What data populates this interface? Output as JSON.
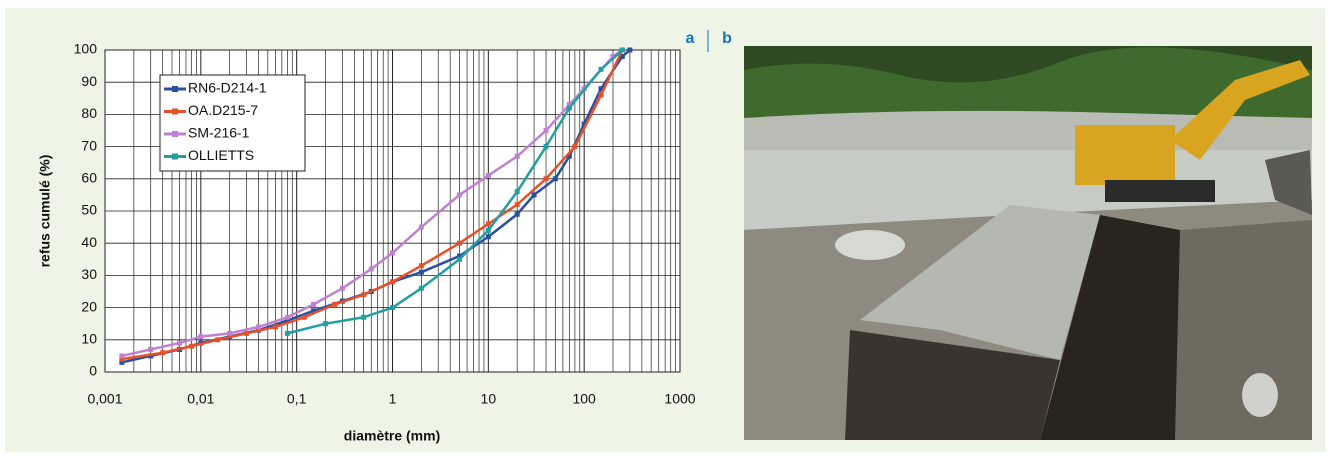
{
  "chart_data": {
    "type": "line",
    "xlabel": "diamètre (mm)",
    "ylabel": "refus cumulé (%)",
    "xscale": "log",
    "xlim": [
      0.001,
      1000
    ],
    "xticks": [
      {
        "value": 0.001,
        "label": "0,001"
      },
      {
        "value": 0.01,
        "label": "0,01"
      },
      {
        "value": 0.1,
        "label": "0,1"
      },
      1,
      10,
      100,
      1000
    ],
    "ylim": [
      0,
      100
    ],
    "yticks": [
      0,
      10,
      20,
      30,
      40,
      50,
      60,
      70,
      80,
      90,
      100
    ],
    "grid": true,
    "minor_grid": true,
    "legend": "upper left",
    "series": [
      {
        "name": "RN6-D214-1",
        "color": "#2a4fa0",
        "x": [
          0.0015,
          0.003,
          0.006,
          0.01,
          0.02,
          0.04,
          0.08,
          0.15,
          0.3,
          0.6,
          1,
          2,
          5,
          10,
          20,
          30,
          50,
          70,
          100,
          150,
          250,
          300
        ],
        "values": [
          3,
          5,
          7,
          9,
          11,
          13,
          16,
          19,
          22,
          25,
          28,
          31,
          36,
          42,
          49,
          55,
          60,
          67,
          77,
          88,
          98,
          100
        ]
      },
      {
        "name": "OA.D215-7",
        "color": "#e8502a",
        "x": [
          0.0015,
          0.004,
          0.008,
          0.015,
          0.03,
          0.06,
          0.12,
          0.25,
          0.5,
          1,
          2,
          5,
          10,
          20,
          40,
          80,
          150,
          250
        ],
        "values": [
          4,
          6,
          8,
          10,
          12,
          14,
          17,
          21,
          24,
          28,
          33,
          40,
          46,
          52,
          60,
          70,
          86,
          100
        ]
      },
      {
        "name": "SM-216-1",
        "color": "#c080d0",
        "x": [
          0.0015,
          0.003,
          0.006,
          0.01,
          0.02,
          0.04,
          0.08,
          0.15,
          0.3,
          0.6,
          1,
          2,
          5,
          10,
          20,
          40,
          70,
          100,
          200,
          250
        ],
        "values": [
          5,
          7,
          9,
          11,
          12,
          14,
          17,
          21,
          26,
          32,
          37,
          45,
          55,
          61,
          67,
          75,
          83,
          88,
          98,
          100
        ]
      },
      {
        "name": "OLLIETTS",
        "color": "#20a0a0",
        "x": [
          0.08,
          0.2,
          0.5,
          1,
          2,
          5,
          10,
          20,
          40,
          70,
          150,
          250
        ],
        "values": [
          12,
          15,
          17,
          20,
          26,
          35,
          44,
          56,
          70,
          82,
          94,
          100
        ]
      }
    ]
  },
  "panel_labels": [
    "a",
    "b"
  ]
}
